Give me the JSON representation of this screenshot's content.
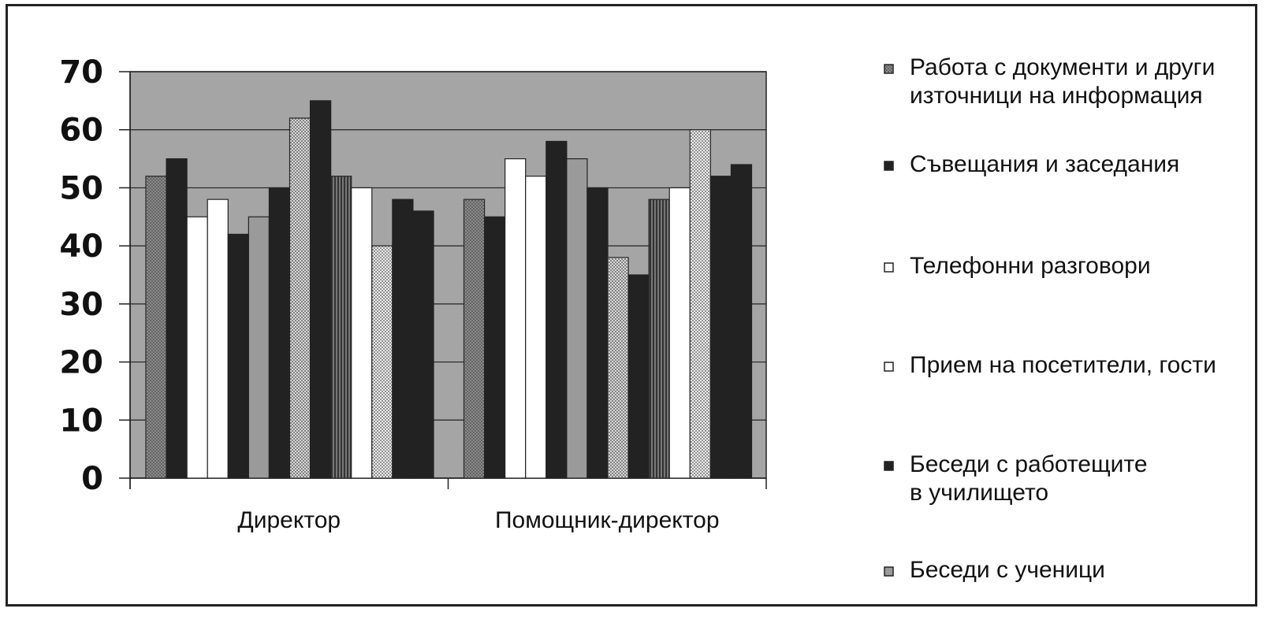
{
  "chart_data": {
    "type": "bar",
    "categories": [
      "Директор",
      "Помощник-директор"
    ],
    "series": [
      {
        "name": "Работа с документи и други\nизточници на информация",
        "values": [
          52,
          48
        ],
        "fill": "#8c8c8c",
        "pattern": "dots"
      },
      {
        "name": "Съвещания и заседания",
        "values": [
          55,
          45
        ],
        "fill": "#222222"
      },
      {
        "name": "Телефонни разговори",
        "values": [
          45,
          55
        ],
        "fill": "#ffffff"
      },
      {
        "name": "Прием на посетители, гости",
        "values": [
          48,
          52
        ],
        "fill": "#ffffff"
      },
      {
        "name": "Беседи с работещите\nв училището",
        "values": [
          42,
          58
        ],
        "fill": "#222222"
      },
      {
        "name": "Беседи с ученици",
        "values": [
          45,
          55
        ],
        "fill": "#9a9a9a"
      },
      {
        "name": "",
        "values": [
          50,
          50
        ],
        "fill": "#222222"
      },
      {
        "name": "",
        "values": [
          62,
          38
        ],
        "fill": "#d8d8d8",
        "pattern": "dots"
      },
      {
        "name": "",
        "values": [
          65,
          35
        ],
        "fill": "#222222"
      },
      {
        "name": "",
        "values": [
          52,
          48
        ],
        "fill": "#777777",
        "pattern": "stripes"
      },
      {
        "name": "",
        "values": [
          50,
          50
        ],
        "fill": "#ffffff"
      },
      {
        "name": "",
        "values": [
          40,
          60
        ],
        "fill": "#f2f2f2",
        "pattern": "dots"
      },
      {
        "name": "",
        "values": [
          48,
          52
        ],
        "fill": "#222222"
      },
      {
        "name": "",
        "values": [
          46,
          54
        ],
        "fill": "#222222"
      }
    ],
    "yticks": [
      "0",
      "10",
      "20",
      "30",
      "40",
      "50",
      "60",
      "70"
    ],
    "ylim": [
      0,
      70
    ],
    "grid": true,
    "legend_position": "right",
    "plot_background": "#a5a5a5"
  }
}
